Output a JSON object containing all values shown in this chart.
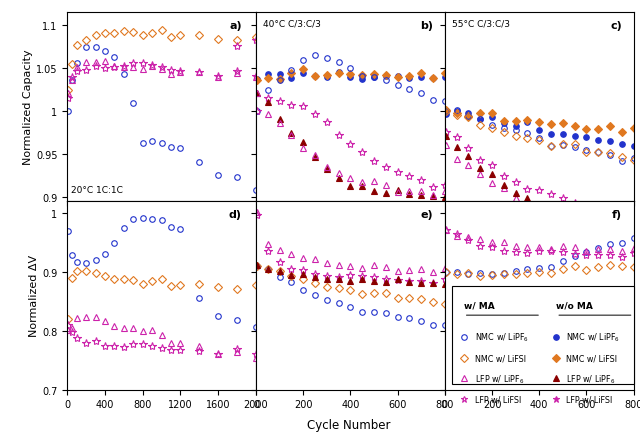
{
  "title": "",
  "xlabel": "Cycle Number",
  "ylabel_top": "Normalized Capacity",
  "ylabel_bot": "Normalized ΔV",
  "panel_labels": [
    "a)",
    "b)",
    "c)",
    "d)",
    "e)",
    "f)"
  ],
  "panel_annotations_top": [
    "20°C 1C:1C",
    "40°C C/3:C/3",
    "55°C C/3:C/3"
  ],
  "colors": {
    "blue": "#2233CC",
    "orange": "#E07820",
    "magenta": "#CC22AA",
    "darkred": "#8B0000"
  }
}
